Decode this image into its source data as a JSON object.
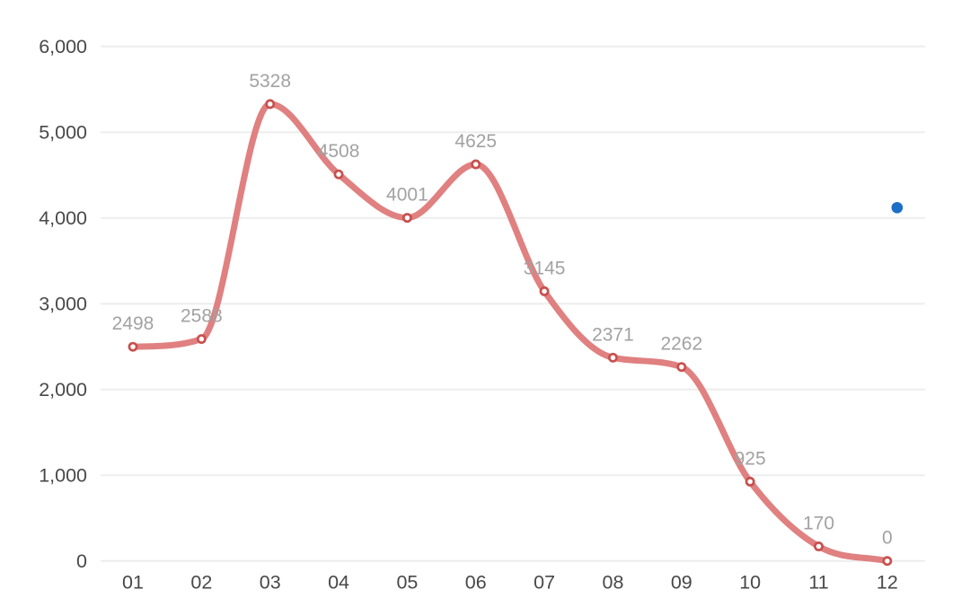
{
  "chart_data": {
    "type": "line",
    "title": "",
    "xlabel": "",
    "ylabel": "",
    "categories": [
      "01",
      "02",
      "03",
      "04",
      "05",
      "06",
      "07",
      "08",
      "09",
      "10",
      "11",
      "12"
    ],
    "values": [
      2498,
      2588,
      5328,
      4508,
      4001,
      4625,
      3145,
      2371,
      2262,
      925,
      170,
      0
    ],
    "data_labels": [
      "2498",
      "2588",
      "5328",
      "4508",
      "4001",
      "4625",
      "3145",
      "2371",
      "2262",
      "925",
      "170",
      "0"
    ],
    "ylim": [
      0,
      6000
    ],
    "y_tick_interval": 1000,
    "y_tick_labels": [
      "0",
      "1,000",
      "2,000",
      "3,000",
      "4,000",
      "5,000",
      "6,000"
    ],
    "grid": "horizontal-only",
    "legend": "none",
    "smooth": true,
    "annotation_point": {
      "label": "blue-dot",
      "near_category": "12",
      "approx_value": 4120
    }
  },
  "colors": {
    "background": "#ffffff",
    "line": "#e08080",
    "marker_fill": "#ffffff",
    "marker_stroke": "#c8504e",
    "data_label": "#a2a2a2",
    "axis_label": "#484848",
    "gridline": "#ededed",
    "accent_dot": "#1d6ec7"
  }
}
